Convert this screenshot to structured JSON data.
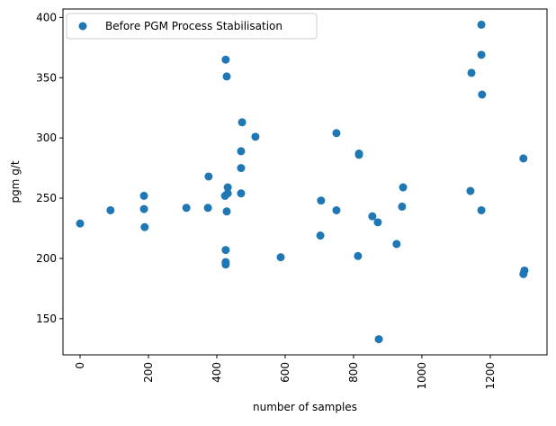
{
  "chart_data": {
    "type": "scatter",
    "title": "",
    "xlabel": "number of samples",
    "ylabel": "pgm g/t",
    "xlim": [
      -50,
      1366
    ],
    "ylim": [
      120,
      407
    ],
    "xticks": [
      0,
      200,
      400,
      600,
      800,
      1000,
      1200
    ],
    "yticks": [
      150,
      200,
      250,
      300,
      350,
      400
    ],
    "grid": false,
    "legend_position": "top-left",
    "series": [
      {
        "name": "Before PGM Process Stabilisation",
        "color": "#1f77b4",
        "points": [
          [
            0,
            229
          ],
          [
            89,
            240
          ],
          [
            187,
            252
          ],
          [
            187,
            241
          ],
          [
            189,
            226
          ],
          [
            311,
            242
          ],
          [
            374,
            242
          ],
          [
            376,
            268
          ],
          [
            426,
            365
          ],
          [
            429,
            351
          ],
          [
            474,
            313
          ],
          [
            471,
            289
          ],
          [
            471,
            275
          ],
          [
            471,
            254
          ],
          [
            432,
            259
          ],
          [
            432,
            254
          ],
          [
            424,
            252
          ],
          [
            429,
            239
          ],
          [
            426,
            207
          ],
          [
            426,
            197
          ],
          [
            426,
            195
          ],
          [
            513,
            301
          ],
          [
            587,
            201
          ],
          [
            750,
            304
          ],
          [
            705,
            248
          ],
          [
            750,
            240
          ],
          [
            703,
            219
          ],
          [
            816,
            287
          ],
          [
            816,
            286
          ],
          [
            813,
            202
          ],
          [
            855,
            235
          ],
          [
            871,
            230
          ],
          [
            874,
            133
          ],
          [
            926,
            212
          ],
          [
            945,
            259
          ],
          [
            942,
            243
          ],
          [
            1174,
            394
          ],
          [
            1174,
            369
          ],
          [
            1176,
            336
          ],
          [
            1145,
            354
          ],
          [
            1142,
            256
          ],
          [
            1174,
            240
          ],
          [
            1297,
            283
          ],
          [
            1300,
            190
          ],
          [
            1297,
            187
          ]
        ]
      }
    ]
  }
}
